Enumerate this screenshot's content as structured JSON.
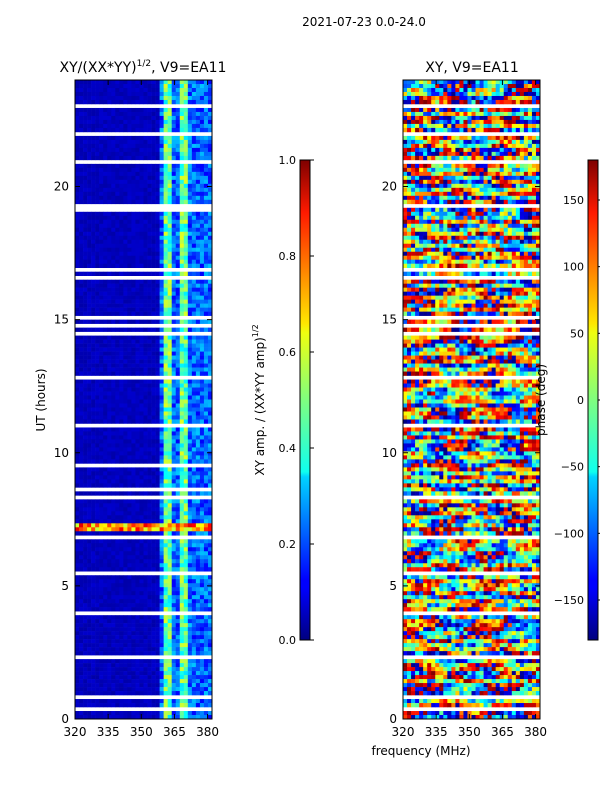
{
  "figure": {
    "suptitle": "2021-07-23 0.0-24.0",
    "xlabel": "frequency (MHz)"
  },
  "chart_data": [
    {
      "type": "heatmap",
      "title": "XY/(XX*YY)",
      "title_exponent": "1/2",
      "title_suffix": ", V9=EA11",
      "ylabel": "UT (hours)",
      "x_ticks": [
        320,
        335,
        350,
        365,
        380
      ],
      "y_ticks": [
        0,
        5,
        10,
        15,
        20
      ],
      "xlim": [
        320,
        382
      ],
      "ylim": [
        0,
        24
      ],
      "colormap": "jet",
      "colorbar": {
        "label": "XY amp. / (XX*YY amp)",
        "label_exponent": "1/2",
        "range": [
          0.0,
          1.0
        ],
        "ticks": [
          "0.0",
          "0.2",
          "0.4",
          "0.6",
          "0.8",
          "1.0"
        ]
      }
    },
    {
      "type": "heatmap",
      "title": "XY, V9=EA11",
      "x_ticks": [
        320,
        335,
        350,
        365,
        380
      ],
      "y_ticks": [
        0,
        5,
        10,
        15,
        20
      ],
      "xlim": [
        320,
        382
      ],
      "ylim": [
        0,
        24
      ],
      "colormap": "jet",
      "colorbar": {
        "label": "phase (deg)",
        "range": [
          -180,
          180
        ],
        "ticks": [
          "150",
          "100",
          "50",
          "0",
          "−50",
          "−100",
          "−150"
        ]
      }
    }
  ]
}
